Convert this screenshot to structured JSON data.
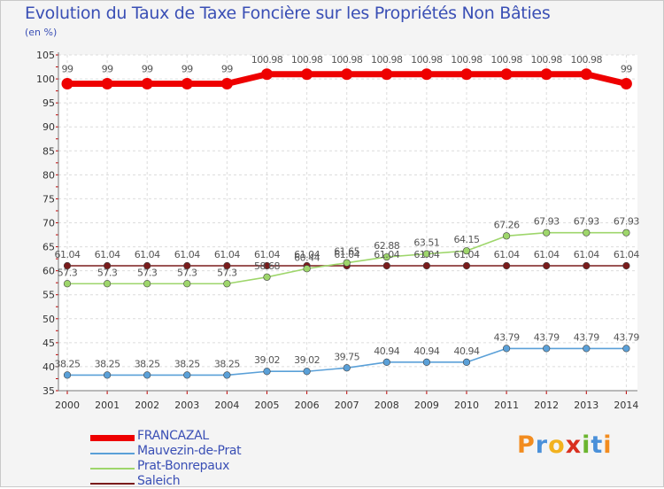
{
  "title": "Evolution du Taux de Taxe Foncière sur les Propriétés Non Bâties",
  "unit": "(en %)",
  "logo": "Proxiti",
  "chart_data": {
    "type": "line",
    "title": "Evolution du Taux de Taxe Foncière sur les Propriétés Non Bâties",
    "ylabel": "(en %)",
    "xlabel": "",
    "ylim": [
      35,
      105
    ],
    "yticks": [
      35,
      40,
      45,
      50,
      55,
      60,
      65,
      70,
      75,
      80,
      85,
      90,
      95,
      100,
      105
    ],
    "categories": [
      "2000",
      "2001",
      "2002",
      "2003",
      "2004",
      "2005",
      "2006",
      "2007",
      "2008",
      "2009",
      "2010",
      "2011",
      "2012",
      "2013",
      "2014"
    ],
    "grid": true,
    "legend_position": "bottom-left",
    "series": [
      {
        "name": "FRANCAZAL",
        "color": "#ee0000",
        "values": [
          99,
          99,
          99,
          99,
          99,
          100.98,
          100.98,
          100.98,
          100.98,
          100.98,
          100.98,
          100.98,
          100.98,
          100.98,
          99
        ]
      },
      {
        "name": "Mauvezin-de-Prat",
        "color": "#5aa0d8",
        "values": [
          38.25,
          38.25,
          38.25,
          38.25,
          38.25,
          39.02,
          39.02,
          39.75,
          40.94,
          40.94,
          40.94,
          43.79,
          43.79,
          43.79,
          43.79
        ]
      },
      {
        "name": "Prat-Bonrepaux",
        "color": "#9ed66b",
        "values": [
          57.3,
          57.3,
          57.3,
          57.3,
          57.3,
          58.68,
          60.44,
          61.65,
          62.88,
          63.51,
          64.15,
          67.26,
          67.93,
          67.93,
          67.93
        ]
      },
      {
        "name": "Saleich",
        "color": "#7a1c1c",
        "values": [
          61.04,
          61.04,
          61.04,
          61.04,
          61.04,
          61.04,
          61.04,
          61.04,
          61.04,
          61.04,
          61.04,
          61.04,
          61.04,
          61.04,
          61.04
        ]
      }
    ]
  }
}
